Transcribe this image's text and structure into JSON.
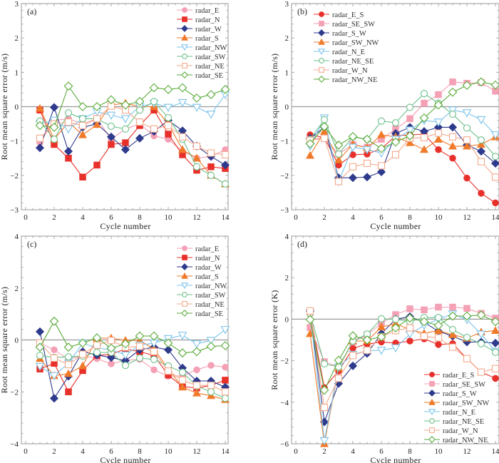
{
  "chart_data": [
    {
      "type": "line",
      "panel_label": "(a)",
      "xlabel": "Cycle number",
      "ylabel": "Root mean square error (m/s)",
      "xlim": [
        0,
        14
      ],
      "ylim": [
        -3,
        3
      ],
      "xticks": [
        0,
        2,
        4,
        6,
        8,
        10,
        12,
        14
      ],
      "yticks": [
        -3,
        -2,
        -1,
        0,
        1,
        2,
        3
      ],
      "zero_line": true,
      "legend_position": "top-right",
      "x": [
        1,
        2,
        3,
        4,
        5,
        6,
        7,
        8,
        9,
        10,
        11,
        12,
        13,
        14
      ],
      "series": [
        {
          "name": "radar_E",
          "color": "#f4a0b5",
          "marker": "circle",
          "filled": true,
          "values": [
            -1.05,
            -0.4,
            -0.35,
            -0.5,
            -0.35,
            -0.95,
            -0.65,
            -0.5,
            -0.85,
            -0.95,
            -1.3,
            -1.5,
            -1.45,
            -1.25
          ]
        },
        {
          "name": "radar_N",
          "color": "#e8302a",
          "marker": "square",
          "filled": true,
          "values": [
            -0.1,
            -1.1,
            -1.5,
            -2.05,
            -1.7,
            -1.1,
            -1.05,
            -0.55,
            -0.1,
            -0.8,
            -1.4,
            -1.85,
            -1.75,
            -1.8
          ]
        },
        {
          "name": "radar_W",
          "color": "#2e3a8c",
          "marker": "diamond",
          "filled": true,
          "values": [
            -1.2,
            -0.02,
            -1.3,
            -0.6,
            -0.5,
            -0.88,
            -1.25,
            -0.92,
            -0.72,
            -0.4,
            -0.7,
            -1.15,
            -1.45,
            -1.7
          ]
        },
        {
          "name": "radar_S",
          "color": "#f07a2a",
          "marker": "triangle",
          "filled": true,
          "values": [
            -0.05,
            -0.95,
            -0.45,
            -0.82,
            -0.52,
            0.05,
            0.1,
            0.0,
            0.0,
            -0.5,
            -1.25,
            -1.5,
            -2.0,
            -2.25
          ]
        },
        {
          "name": "radar_NW",
          "color": "#7ec4ea",
          "marker": "triangle-down",
          "filled": false,
          "values": [
            -0.5,
            -0.4,
            -0.65,
            -0.35,
            -0.15,
            -0.25,
            -0.35,
            0.0,
            0.1,
            -0.02,
            0.12,
            -0.02,
            -0.22,
            0.35
          ]
        },
        {
          "name": "radar_SW",
          "color": "#6cc08a",
          "marker": "circle",
          "filled": false,
          "values": [
            -0.42,
            -0.95,
            -0.18,
            -0.35,
            -0.35,
            -0.57,
            -0.65,
            -0.1,
            0.15,
            -0.32,
            -0.95,
            -1.75,
            -2.0,
            -2.25
          ]
        },
        {
          "name": "radar_NE",
          "color": "#f5a98c",
          "marker": "square",
          "filled": false,
          "values": [
            -0.92,
            -0.5,
            -0.45,
            -0.55,
            -0.35,
            0.02,
            -0.1,
            -0.45,
            -0.65,
            -0.55,
            -0.88,
            -1.15,
            -1.35,
            -1.4
          ]
        },
        {
          "name": "radar_SE",
          "color": "#5aab3a",
          "marker": "diamond",
          "filled": false,
          "values": [
            -0.55,
            -0.6,
            0.6,
            0.0,
            0.0,
            0.2,
            0.05,
            0.15,
            0.55,
            0.5,
            0.55,
            0.25,
            0.35,
            0.5
          ]
        }
      ]
    },
    {
      "type": "line",
      "panel_label": "(b)",
      "xlabel": "Cycle number",
      "ylabel": "Root mean square error (m/s)",
      "xlim": [
        0,
        14
      ],
      "ylim": [
        -3,
        3
      ],
      "xticks": [
        0,
        2,
        4,
        6,
        8,
        10,
        12,
        14
      ],
      "yticks": [
        -3,
        -2,
        -1,
        0,
        1,
        2,
        3
      ],
      "zero_line": true,
      "legend_position": "top-left",
      "x": [
        1,
        2,
        3,
        4,
        5,
        6,
        7,
        8,
        9,
        10,
        11,
        12,
        13,
        14
      ],
      "series": [
        {
          "name": "radar_E_S",
          "color": "#e8302a",
          "marker": "circle",
          "filled": true,
          "values": [
            -0.82,
            -0.9,
            -1.7,
            -1.4,
            -1.38,
            -1.22,
            -0.85,
            -0.82,
            -0.8,
            -1.25,
            -1.5,
            -2.08,
            -2.52,
            -2.8
          ]
        },
        {
          "name": "radar_SE_SW",
          "color": "#f4a0b5",
          "marker": "square",
          "filled": true,
          "values": [
            -0.95,
            -0.9,
            -1.38,
            -1.1,
            -1.18,
            -0.95,
            -0.65,
            -0.35,
            0.1,
            0.35,
            0.72,
            0.68,
            0.7,
            0.45
          ]
        },
        {
          "name": "radar_S_W",
          "color": "#2e3a8c",
          "marker": "diamond",
          "filled": true,
          "values": [
            -0.92,
            -0.6,
            -2.07,
            -2.07,
            -2.05,
            -1.9,
            -0.78,
            -0.6,
            -0.72,
            -0.6,
            -0.6,
            -1.12,
            -1.3,
            -1.65
          ]
        },
        {
          "name": "radar_SW_NW",
          "color": "#f07a2a",
          "marker": "triangle",
          "filled": true,
          "values": [
            -1.42,
            -0.72,
            -1.55,
            -1.1,
            -1.2,
            -0.82,
            -0.88,
            -1.05,
            -1.25,
            -0.95,
            -1.15,
            -1.15,
            -1.1,
            -0.88
          ]
        },
        {
          "name": "radar_N_E",
          "color": "#7ec4ea",
          "marker": "triangle-down",
          "filled": false,
          "values": [
            -1.15,
            -0.33,
            -2.18,
            -1.18,
            -1.25,
            -1.35,
            -0.95,
            -0.68,
            -0.4,
            -0.45,
            -0.1,
            -0.18,
            -0.38,
            -0.82
          ]
        },
        {
          "name": "radar_NE_SE",
          "color": "#6cc08a",
          "marker": "circle",
          "filled": false,
          "values": [
            -0.95,
            -0.38,
            -1.38,
            -0.88,
            -0.95,
            -0.42,
            -0.47,
            -0.02,
            0.38,
            0.1,
            -0.22,
            -0.62,
            -0.97,
            -1.45
          ]
        },
        {
          "name": "radar_W_N",
          "color": "#f5a98c",
          "marker": "square",
          "filled": false,
          "values": [
            -0.98,
            -0.92,
            -2.18,
            -1.75,
            -1.65,
            -1.72,
            -1.4,
            -0.92,
            -0.9,
            -0.77,
            -0.88,
            -0.97,
            -1.6,
            -2.05
          ]
        },
        {
          "name": "radar_NW_NE",
          "color": "#5aab3a",
          "marker": "diamond",
          "filled": false,
          "values": [
            -1.08,
            -0.58,
            -1.12,
            -0.87,
            -0.95,
            -1.22,
            -1.03,
            -0.85,
            -0.33,
            0.05,
            0.42,
            0.62,
            0.72,
            0.63
          ]
        }
      ]
    },
    {
      "type": "line",
      "panel_label": "(c)",
      "xlabel": "Cycle number",
      "ylabel": "Root mean square error (m/s)",
      "xlim": [
        0,
        14
      ],
      "ylim": [
        -4,
        4
      ],
      "xticks": [
        0,
        2,
        4,
        6,
        8,
        10,
        12,
        14
      ],
      "yticks": [
        -4,
        -2,
        0,
        2,
        4
      ],
      "zero_line": true,
      "legend_position": "top-right",
      "x": [
        1,
        2,
        3,
        4,
        5,
        6,
        7,
        8,
        9,
        10,
        11,
        12,
        13,
        14
      ],
      "series": [
        {
          "name": "radar_E",
          "color": "#f4a0b5",
          "marker": "circle",
          "filled": true,
          "values": [
            -0.12,
            -0.38,
            -0.75,
            -0.6,
            -0.72,
            -0.92,
            -0.78,
            -0.75,
            -1.15,
            -1.4,
            -1.38,
            -1.15,
            -0.98,
            -1.05
          ]
        },
        {
          "name": "radar_N",
          "color": "#e8302a",
          "marker": "square",
          "filled": true,
          "values": [
            -1.12,
            -0.9,
            -2.0,
            -1.18,
            -0.6,
            -0.55,
            -0.35,
            -0.45,
            -0.6,
            -1.35,
            -1.8,
            -1.85,
            -1.75,
            -1.55
          ]
        },
        {
          "name": "radar_W",
          "color": "#2e3a8c",
          "marker": "diamond",
          "filled": true,
          "values": [
            0.32,
            -2.25,
            -1.4,
            -0.45,
            -0.58,
            -0.68,
            -0.8,
            -0.38,
            -0.28,
            -0.38,
            -1.08,
            -1.58,
            -1.58,
            -1.82
          ]
        },
        {
          "name": "radar_S",
          "color": "#f07a2a",
          "marker": "triangle",
          "filled": true,
          "values": [
            -0.72,
            -1.38,
            -1.3,
            -1.0,
            0.07,
            0.07,
            -0.02,
            -0.02,
            -0.35,
            -1.12,
            -1.82,
            -2.05,
            -2.15,
            -2.3
          ]
        },
        {
          "name": "radar_NW",
          "color": "#7ec4ea",
          "marker": "triangle-down",
          "filled": false,
          "values": [
            -1.02,
            -1.38,
            -0.9,
            -0.12,
            -0.32,
            -0.38,
            -0.58,
            -0.2,
            -0.12,
            0.05,
            0.18,
            -0.15,
            -0.02,
            0.4
          ]
        },
        {
          "name": "radar_SW",
          "color": "#6cc08a",
          "marker": "circle",
          "filled": false,
          "values": [
            -0.6,
            -0.68,
            -0.65,
            -0.62,
            -0.48,
            -0.48,
            -0.98,
            -0.7,
            -0.75,
            -1.0,
            -1.25,
            -1.78,
            -2.0,
            -2.25
          ]
        },
        {
          "name": "radar_NE",
          "color": "#f5a98c",
          "marker": "square",
          "filled": false,
          "values": [
            -0.12,
            -0.7,
            -0.95,
            -0.55,
            -0.2,
            -0.02,
            -0.28,
            -0.25,
            -0.45,
            -1.2,
            -1.55,
            -1.75,
            -1.75,
            -2.0
          ]
        },
        {
          "name": "radar_SE",
          "color": "#5aab3a",
          "marker": "diamond",
          "filled": false,
          "values": [
            -0.28,
            0.72,
            -0.28,
            -0.12,
            0.08,
            -0.32,
            -0.15,
            0.15,
            0.15,
            -0.12,
            -0.5,
            -0.45,
            -0.25,
            -0.22
          ]
        }
      ]
    },
    {
      "type": "line",
      "panel_label": "(d)",
      "xlabel": "Cycle number",
      "ylabel": "Root mean square error (K)",
      "xlim": [
        0,
        14
      ],
      "ylim": [
        -6,
        4
      ],
      "xticks": [
        0,
        2,
        4,
        6,
        8,
        10,
        12,
        14
      ],
      "yticks": [
        -6,
        -4,
        -2,
        0,
        2,
        4
      ],
      "zero_line": true,
      "legend_position": "bottom-right",
      "x": [
        1,
        2,
        3,
        4,
        5,
        6,
        7,
        8,
        9,
        10,
        11,
        12,
        13,
        14
      ],
      "series": [
        {
          "name": "radar_E_S",
          "color": "#e8302a",
          "marker": "circle",
          "filled": true,
          "values": [
            0.25,
            -3.3,
            -2.5,
            -1.4,
            -1.2,
            -1.1,
            -1.15,
            -1.05,
            -0.95,
            -1.22,
            -1.18,
            -1.9,
            -2.55,
            -2.85
          ]
        },
        {
          "name": "radar_SE_SW",
          "color": "#f4a0b5",
          "marker": "square",
          "filled": true,
          "values": [
            -0.4,
            -2.05,
            -2.3,
            -1.1,
            -0.75,
            -0.2,
            0.22,
            0.5,
            0.45,
            0.58,
            0.58,
            0.52,
            0.28,
            0.05
          ]
        },
        {
          "name": "radar_S_W",
          "color": "#2e3a8c",
          "marker": "diamond",
          "filled": true,
          "values": [
            0.38,
            -4.95,
            -3.1,
            -2.25,
            -1.65,
            -0.7,
            0.0,
            0.12,
            -0.15,
            -0.58,
            -0.82,
            -1.1,
            -1.1,
            -1.15
          ]
        },
        {
          "name": "radar_SW_NW",
          "color": "#f07a2a",
          "marker": "triangle",
          "filled": true,
          "values": [
            -0.7,
            -6.0,
            -2.35,
            -1.05,
            -1.05,
            -0.38,
            -0.22,
            -0.5,
            -0.68,
            -0.55,
            -0.75,
            -0.92,
            -0.62,
            -0.55
          ]
        },
        {
          "name": "radar_N_E",
          "color": "#7ec4ea",
          "marker": "triangle-down",
          "filled": false,
          "values": [
            0.3,
            -5.85,
            -2.3,
            -1.7,
            -1.52,
            -1.5,
            -1.38,
            -0.72,
            -0.3,
            0.0,
            0.25,
            -0.02,
            -0.72,
            -1.55
          ]
        },
        {
          "name": "radar_NE_SE",
          "color": "#6cc08a",
          "marker": "circle",
          "filled": false,
          "values": [
            0.28,
            -2.15,
            -2.3,
            -1.05,
            -0.72,
            0.02,
            0.0,
            -0.12,
            0.08,
            0.08,
            -0.5,
            -0.88,
            -1.18,
            -1.6
          ]
        },
        {
          "name": "radar_W_N",
          "color": "#f5a98c",
          "marker": "square",
          "filled": false,
          "values": [
            0.4,
            -4.25,
            -2.85,
            -1.75,
            -1.5,
            -0.85,
            -0.55,
            -0.42,
            -0.82,
            -0.9,
            -1.35,
            -1.9,
            -2.55,
            -2.38
          ]
        },
        {
          "name": "radar_NW_NE",
          "color": "#5aab3a",
          "marker": "diamond",
          "filled": false,
          "values": [
            -0.02,
            -3.42,
            -1.98,
            -0.8,
            -1.0,
            -0.85,
            -0.42,
            0.05,
            -0.12,
            -0.3,
            0.15,
            0.15,
            0.2,
            -0.12
          ]
        }
      ]
    }
  ]
}
